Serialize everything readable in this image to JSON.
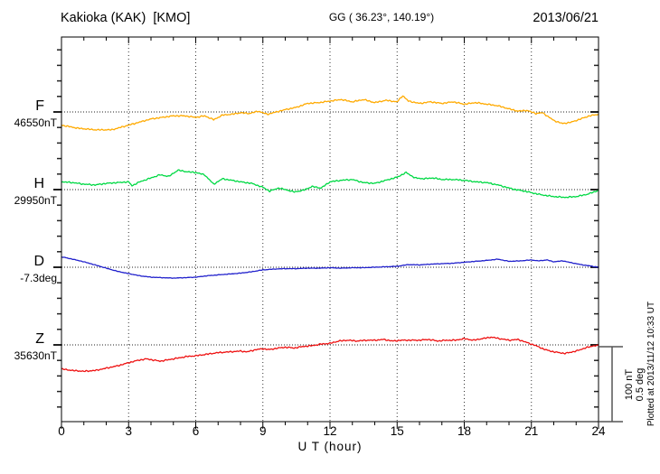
{
  "header": {
    "station": "Kakioka (KAK)  [KMO]",
    "coords": "GG ( 36.23°, 140.19°)",
    "date": "2013/06/21"
  },
  "axes": {
    "xlabel": "U T (hour)",
    "xticks": [
      0,
      3,
      6,
      9,
      12,
      15,
      18,
      21,
      24
    ],
    "x_minor_step_hours": 1,
    "x_range": [
      0,
      24
    ],
    "grid": "dotted vertical every 3h, dotted horizontal at each series baseline"
  },
  "scalebar": {
    "label_nT": "100 nT",
    "label_deg": "0.5 deg"
  },
  "footer_note": "Plotted at 2013/11/12 10:33 UT",
  "chart_data": {
    "type": "line",
    "title": "Kakioka (KAK) [KMO] magnetogram 2013/06/21",
    "xlabel": "U T (hour)",
    "x_range": [
      0,
      24
    ],
    "y_minor_tick": "20 nT (0.1 deg for D)",
    "y_major_tick": "100 nT (0.5 deg for D)",
    "series": [
      {
        "name": "F",
        "value_label": "46550nT",
        "baseline_value": 46550,
        "unit": "nT",
        "color": "#ffaa00",
        "points": [
          [
            0,
            46533
          ],
          [
            0.75,
            46529
          ],
          [
            1.5,
            46527
          ],
          [
            2.25,
            46527
          ],
          [
            3,
            46533
          ],
          [
            3.5,
            46537
          ],
          [
            4,
            46541
          ],
          [
            4.5,
            46543
          ],
          [
            5,
            46545
          ],
          [
            5.5,
            46545
          ],
          [
            6,
            46543
          ],
          [
            6.4,
            46545
          ],
          [
            6.8,
            46540
          ],
          [
            7.2,
            46546
          ],
          [
            7.6,
            46547
          ],
          [
            8,
            46549
          ],
          [
            8.4,
            46548
          ],
          [
            8.8,
            46551
          ],
          [
            9.2,
            46547
          ],
          [
            9.6,
            46550
          ],
          [
            10,
            46553
          ],
          [
            10.5,
            46556
          ],
          [
            11,
            46561
          ],
          [
            11.5,
            46562
          ],
          [
            12,
            46564
          ],
          [
            12.5,
            46566
          ],
          [
            13,
            46563
          ],
          [
            13.5,
            46566
          ],
          [
            14,
            46562
          ],
          [
            14.5,
            46565
          ],
          [
            15,
            46563
          ],
          [
            15.25,
            46571
          ],
          [
            15.5,
            46564
          ],
          [
            16,
            46561
          ],
          [
            16.5,
            46563
          ],
          [
            17,
            46561
          ],
          [
            17.5,
            46563
          ],
          [
            18,
            46560
          ],
          [
            18.5,
            46562
          ],
          [
            19,
            46560
          ],
          [
            19.5,
            46558
          ],
          [
            20,
            46554
          ],
          [
            20.4,
            46551
          ],
          [
            20.8,
            46552
          ],
          [
            21.2,
            46548
          ],
          [
            21.5,
            46549
          ],
          [
            22,
            46539
          ],
          [
            22.4,
            46535
          ],
          [
            22.8,
            46537
          ],
          [
            23.2,
            46541
          ],
          [
            23.6,
            46545
          ],
          [
            24,
            46547
          ]
        ]
      },
      {
        "name": "H",
        "value_label": "29950nT",
        "baseline_value": 29950,
        "unit": "nT",
        "color": "#00d944",
        "points": [
          [
            0,
            29960
          ],
          [
            0.5,
            29959
          ],
          [
            1,
            29957
          ],
          [
            1.5,
            29956
          ],
          [
            2,
            29958
          ],
          [
            2.5,
            29959
          ],
          [
            3,
            29960
          ],
          [
            3.15,
            29955
          ],
          [
            3.5,
            29960
          ],
          [
            4,
            29965
          ],
          [
            4.4,
            29969
          ],
          [
            4.8,
            29967
          ],
          [
            5.2,
            29975
          ],
          [
            5.6,
            29973
          ],
          [
            6,
            29972
          ],
          [
            6.4,
            29969
          ],
          [
            6.8,
            29957
          ],
          [
            7.2,
            29964
          ],
          [
            7.6,
            29962
          ],
          [
            8,
            29960
          ],
          [
            8.5,
            29958
          ],
          [
            9,
            29953
          ],
          [
            9.3,
            29948
          ],
          [
            9.7,
            29952
          ],
          [
            10,
            29950
          ],
          [
            10.4,
            29947
          ],
          [
            10.8,
            29949
          ],
          [
            11.2,
            29954
          ],
          [
            11.6,
            29952
          ],
          [
            12,
            29960
          ],
          [
            12.5,
            29962
          ],
          [
            13,
            29963
          ],
          [
            13.5,
            29959
          ],
          [
            14,
            29958
          ],
          [
            14.5,
            29962
          ],
          [
            15,
            29966
          ],
          [
            15.4,
            29972
          ],
          [
            15.8,
            29965
          ],
          [
            16.2,
            29964
          ],
          [
            16.6,
            29965
          ],
          [
            17,
            29963
          ],
          [
            17.5,
            29963
          ],
          [
            18,
            29962
          ],
          [
            18.5,
            29960
          ],
          [
            19,
            29959
          ],
          [
            19.5,
            29956
          ],
          [
            20,
            29952
          ],
          [
            20.3,
            29950
          ],
          [
            20.7,
            29948
          ],
          [
            21,
            29946
          ],
          [
            21.5,
            29943
          ],
          [
            22,
            29941
          ],
          [
            22.5,
            29940
          ],
          [
            23,
            29941
          ],
          [
            23.5,
            29944
          ],
          [
            24,
            29949
          ]
        ]
      },
      {
        "name": "D",
        "value_label": "-7.3deg",
        "baseline_value": -7.3,
        "unit": "deg",
        "color": "#2121cc",
        "points": [
          [
            0,
            -7.233
          ],
          [
            0.5,
            -7.248
          ],
          [
            1,
            -7.265
          ],
          [
            1.5,
            -7.285
          ],
          [
            2,
            -7.306
          ],
          [
            2.5,
            -7.326
          ],
          [
            3,
            -7.341
          ],
          [
            3.5,
            -7.355
          ],
          [
            4,
            -7.364
          ],
          [
            4.5,
            -7.367
          ],
          [
            5,
            -7.37
          ],
          [
            5.5,
            -7.367
          ],
          [
            6,
            -7.364
          ],
          [
            6.5,
            -7.355
          ],
          [
            7,
            -7.349
          ],
          [
            7.5,
            -7.344
          ],
          [
            8,
            -7.338
          ],
          [
            8.5,
            -7.329
          ],
          [
            9,
            -7.317
          ],
          [
            9.5,
            -7.312
          ],
          [
            10,
            -7.309
          ],
          [
            10.5,
            -7.309
          ],
          [
            11,
            -7.306
          ],
          [
            11.5,
            -7.306
          ],
          [
            12,
            -7.303
          ],
          [
            12.5,
            -7.306
          ],
          [
            13,
            -7.303
          ],
          [
            13.5,
            -7.303
          ],
          [
            14,
            -7.3
          ],
          [
            14.5,
            -7.297
          ],
          [
            15,
            -7.294
          ],
          [
            15.5,
            -7.283
          ],
          [
            16,
            -7.285
          ],
          [
            16.5,
            -7.28
          ],
          [
            17,
            -7.277
          ],
          [
            17.5,
            -7.274
          ],
          [
            18,
            -7.268
          ],
          [
            18.5,
            -7.262
          ],
          [
            19,
            -7.256
          ],
          [
            19.5,
            -7.248
          ],
          [
            20,
            -7.262
          ],
          [
            20.5,
            -7.259
          ],
          [
            21,
            -7.253
          ],
          [
            21.3,
            -7.259
          ],
          [
            21.7,
            -7.253
          ],
          [
            22,
            -7.265
          ],
          [
            22.4,
            -7.259
          ],
          [
            22.8,
            -7.271
          ],
          [
            23.2,
            -7.283
          ],
          [
            23.6,
            -7.291
          ],
          [
            24,
            -7.3
          ]
        ]
      },
      {
        "name": "Z",
        "value_label": "35630nT",
        "baseline_value": 35630,
        "unit": "nT",
        "color": "#ee1111",
        "points": [
          [
            0,
            35599
          ],
          [
            0.5,
            35597
          ],
          [
            1,
            35596
          ],
          [
            1.5,
            35597
          ],
          [
            2,
            35600
          ],
          [
            2.5,
            35603
          ],
          [
            3,
            35607
          ],
          [
            3.4,
            35610
          ],
          [
            3.8,
            35612
          ],
          [
            4.2,
            35610
          ],
          [
            4.4,
            35609
          ],
          [
            4.8,
            35611
          ],
          [
            5.2,
            35613
          ],
          [
            5.6,
            35615
          ],
          [
            6,
            35616
          ],
          [
            6.5,
            35618
          ],
          [
            7,
            35620
          ],
          [
            7.5,
            35621
          ],
          [
            8,
            35622
          ],
          [
            8.3,
            35621
          ],
          [
            8.7,
            35624
          ],
          [
            9,
            35625
          ],
          [
            9.3,
            35624
          ],
          [
            9.7,
            35626
          ],
          [
            10,
            35627
          ],
          [
            10.4,
            35626
          ],
          [
            10.8,
            35628
          ],
          [
            11.2,
            35629
          ],
          [
            11.6,
            35631
          ],
          [
            12,
            35632
          ],
          [
            12.4,
            35635
          ],
          [
            12.8,
            35636
          ],
          [
            13.2,
            35635
          ],
          [
            13.6,
            35636
          ],
          [
            14,
            35636
          ],
          [
            14.4,
            35637
          ],
          [
            14.8,
            35635
          ],
          [
            15.2,
            35636
          ],
          [
            15.6,
            35636
          ],
          [
            16,
            35636
          ],
          [
            16.4,
            35637
          ],
          [
            16.8,
            35635
          ],
          [
            17.2,
            35636
          ],
          [
            17.6,
            35636
          ],
          [
            18,
            35638
          ],
          [
            18.4,
            35636
          ],
          [
            18.8,
            35638
          ],
          [
            19.2,
            35640
          ],
          [
            19.6,
            35638
          ],
          [
            20,
            35636
          ],
          [
            20.4,
            35637
          ],
          [
            20.8,
            35633
          ],
          [
            21.2,
            35629
          ],
          [
            21.6,
            35624
          ],
          [
            22,
            35621
          ],
          [
            22.5,
            35619
          ],
          [
            23,
            35622
          ],
          [
            23.4,
            35626
          ],
          [
            23.8,
            35629
          ],
          [
            24,
            35629
          ]
        ]
      }
    ]
  }
}
